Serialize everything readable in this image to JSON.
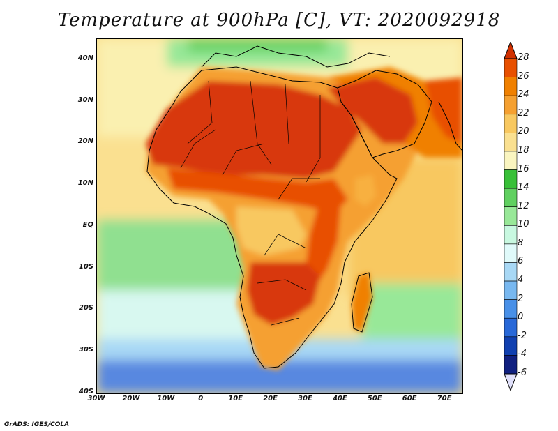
{
  "title": "Temperature at 900hPa [C], VT: 2020092918",
  "credit": "GrADS: IGES/COLA",
  "map": {
    "lon_range": [
      -30,
      75
    ],
    "lat_range": [
      -40,
      45
    ],
    "lat_ticks": [
      {
        "value": 40,
        "label": "40N"
      },
      {
        "value": 30,
        "label": "30N"
      },
      {
        "value": 20,
        "label": "20N"
      },
      {
        "value": 10,
        "label": "10N"
      },
      {
        "value": 0,
        "label": "EQ"
      },
      {
        "value": -10,
        "label": "10S"
      },
      {
        "value": -20,
        "label": "20S"
      },
      {
        "value": -30,
        "label": "30S"
      },
      {
        "value": -40,
        "label": "40S"
      }
    ],
    "lon_ticks": [
      {
        "value": -30,
        "label": "30W"
      },
      {
        "value": -20,
        "label": "20W"
      },
      {
        "value": -10,
        "label": "10W"
      },
      {
        "value": 0,
        "label": "0"
      },
      {
        "value": 10,
        "label": "10E"
      },
      {
        "value": 20,
        "label": "20E"
      },
      {
        "value": 30,
        "label": "30E"
      },
      {
        "value": 40,
        "label": "40E"
      },
      {
        "value": 50,
        "label": "50E"
      },
      {
        "value": 60,
        "label": "60E"
      },
      {
        "value": 70,
        "label": "70E"
      }
    ]
  },
  "colorbar": {
    "labels": [
      "28",
      "26",
      "24",
      "22",
      "20",
      "18",
      "16",
      "14",
      "12",
      "10",
      "8",
      "6",
      "4",
      "2",
      "0",
      "-2",
      "-4",
      "-6"
    ],
    "colors": [
      "#d03000",
      "#e85000",
      "#f08000",
      "#f5a030",
      "#f8c860",
      "#fae090",
      "#faf5c0",
      "#38c038",
      "#60d060",
      "#98e898",
      "#c8f8e0",
      "#e0fafa",
      "#a8d8f5",
      "#78b8f0",
      "#4890e8",
      "#2868d8",
      "#1040b0",
      "#102080",
      "#0a0a60"
    ]
  },
  "colors": {
    "ocean_warm": "#faf0b0",
    "ocean_temperate": "#a8e8a8",
    "ocean_cool": "#d8f8f0",
    "ocean_cold": "#6898e8",
    "land_hot": "#d83808",
    "land_warm": "#f07800",
    "land_mild": "#f8b040",
    "highland": "#38b838"
  }
}
